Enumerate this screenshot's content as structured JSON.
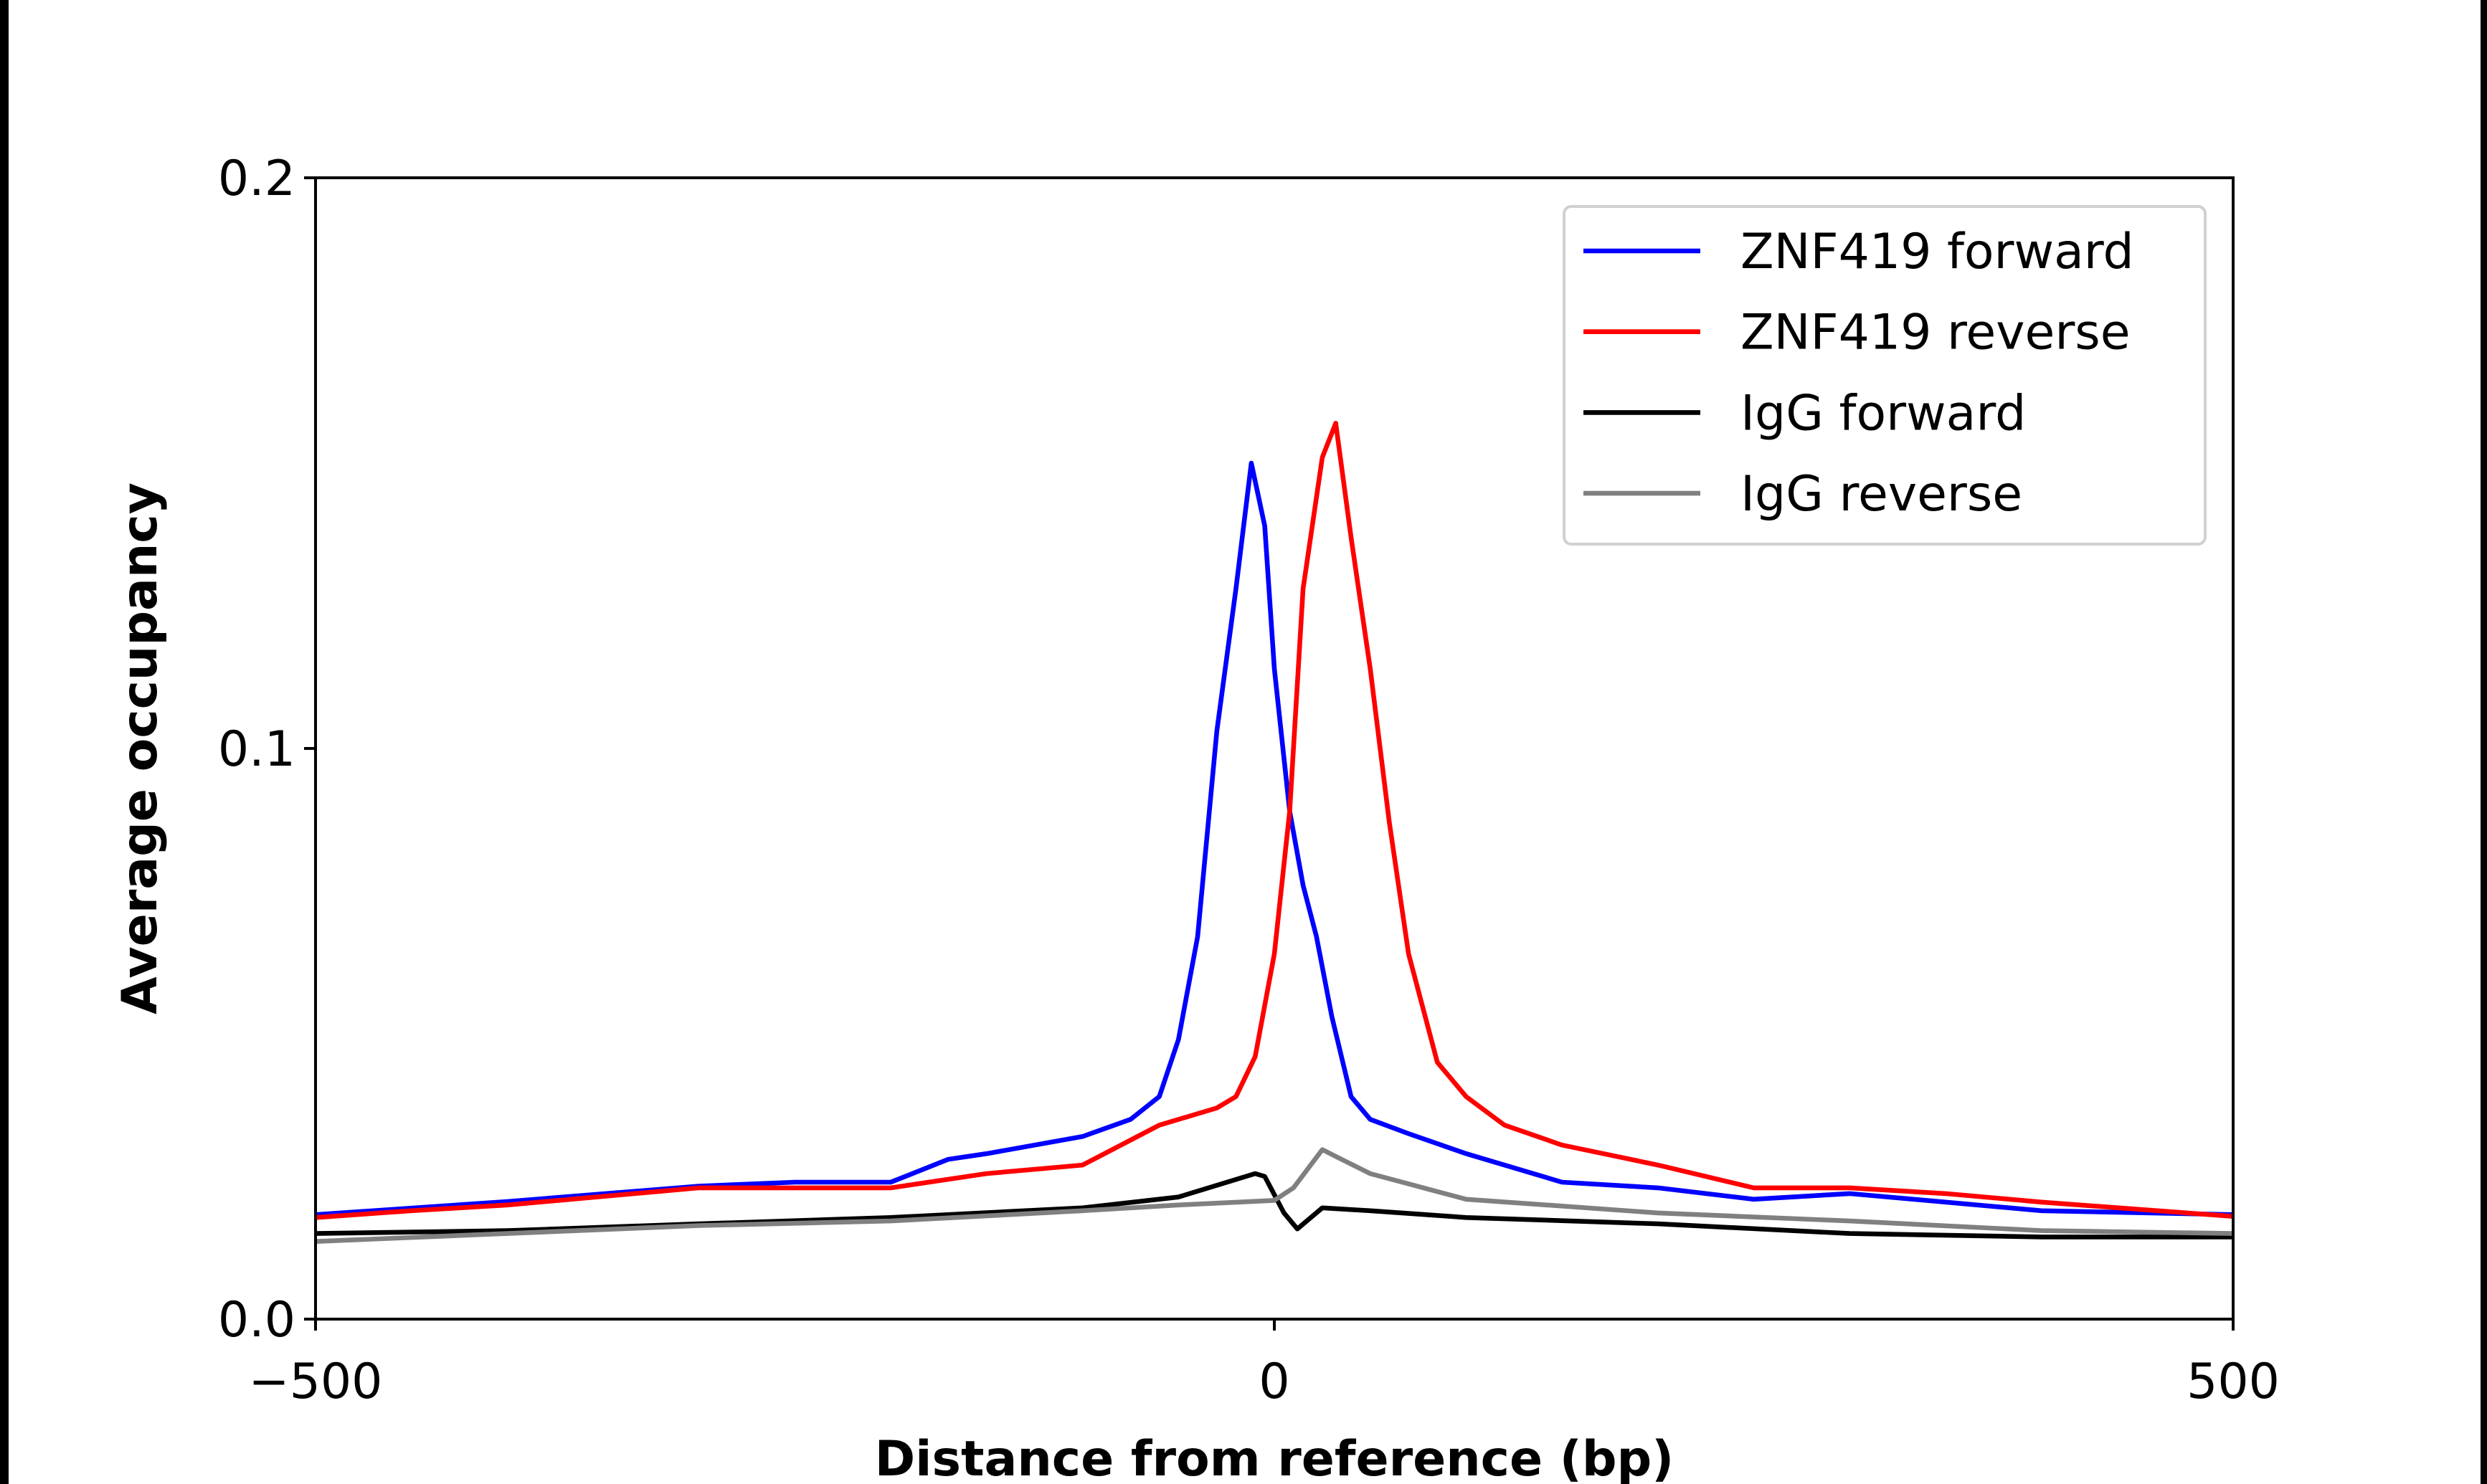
{
  "chart_data": {
    "type": "line",
    "title": "",
    "xlabel": "Distance from reference (bp)",
    "ylabel": "Average occupancy",
    "xlim": [
      -500,
      500
    ],
    "ylim": [
      0,
      0.2
    ],
    "xticks": [
      -500,
      0,
      500
    ],
    "xtick_labels": [
      "−500",
      "0",
      "500"
    ],
    "yticks": [
      0,
      0.1,
      0.2
    ],
    "ytick_labels": [
      "0.0",
      "0.1",
      "0.2"
    ],
    "grid": false,
    "legend_position": "top-right",
    "series": [
      {
        "name": "ZNF419 forward",
        "color": "#0000ff",
        "x": [
          -500,
          -400,
          -300,
          -250,
          -200,
          -170,
          -150,
          -100,
          -75,
          -60,
          -50,
          -40,
          -30,
          -20,
          -12,
          -5,
          0,
          8,
          15,
          22,
          30,
          40,
          50,
          70,
          100,
          150,
          200,
          250,
          300,
          400,
          500
        ],
        "y": [
          0.0183,
          0.0206,
          0.0233,
          0.024,
          0.024,
          0.028,
          0.029,
          0.032,
          0.035,
          0.039,
          0.049,
          0.067,
          0.103,
          0.128,
          0.15,
          0.139,
          0.114,
          0.089,
          0.076,
          0.067,
          0.053,
          0.039,
          0.035,
          0.0325,
          0.029,
          0.024,
          0.023,
          0.021,
          0.022,
          0.019,
          0.0183
        ]
      },
      {
        "name": "ZNF419 reverse",
        "color": "#ff0000",
        "x": [
          -500,
          -450,
          -400,
          -300,
          -200,
          -150,
          -100,
          -60,
          -30,
          -20,
          -10,
          0,
          8,
          15,
          25,
          32,
          40,
          50,
          60,
          70,
          85,
          100,
          120,
          150,
          200,
          250,
          300,
          350,
          400,
          500
        ],
        "y": [
          0.0178,
          0.019,
          0.02,
          0.023,
          0.023,
          0.0255,
          0.027,
          0.034,
          0.037,
          0.039,
          0.046,
          0.064,
          0.089,
          0.128,
          0.151,
          0.157,
          0.137,
          0.114,
          0.087,
          0.064,
          0.045,
          0.039,
          0.034,
          0.0305,
          0.027,
          0.023,
          0.023,
          0.022,
          0.0205,
          0.018
        ]
      },
      {
        "name": "IgG forward",
        "color": "#000000",
        "x": [
          -500,
          -400,
          -300,
          -200,
          -100,
          -50,
          -10,
          -5,
          5,
          12,
          25,
          50,
          100,
          200,
          300,
          400,
          500
        ],
        "y": [
          0.015,
          0.0155,
          0.0167,
          0.0178,
          0.0195,
          0.0214,
          0.0255,
          0.025,
          0.0186,
          0.0158,
          0.0195,
          0.019,
          0.0178,
          0.0167,
          0.015,
          0.0144,
          0.0144
        ]
      },
      {
        "name": "IgG reverse",
        "color": "#808080",
        "x": [
          -500,
          -400,
          -300,
          -200,
          -100,
          -50,
          0,
          10,
          25,
          35,
          50,
          80,
          100,
          200,
          300,
          400,
          500
        ],
        "y": [
          0.0136,
          0.015,
          0.0164,
          0.0172,
          0.019,
          0.02,
          0.0208,
          0.023,
          0.0297,
          0.028,
          0.0255,
          0.0228,
          0.021,
          0.0186,
          0.0172,
          0.0155,
          0.015
        ]
      }
    ]
  }
}
